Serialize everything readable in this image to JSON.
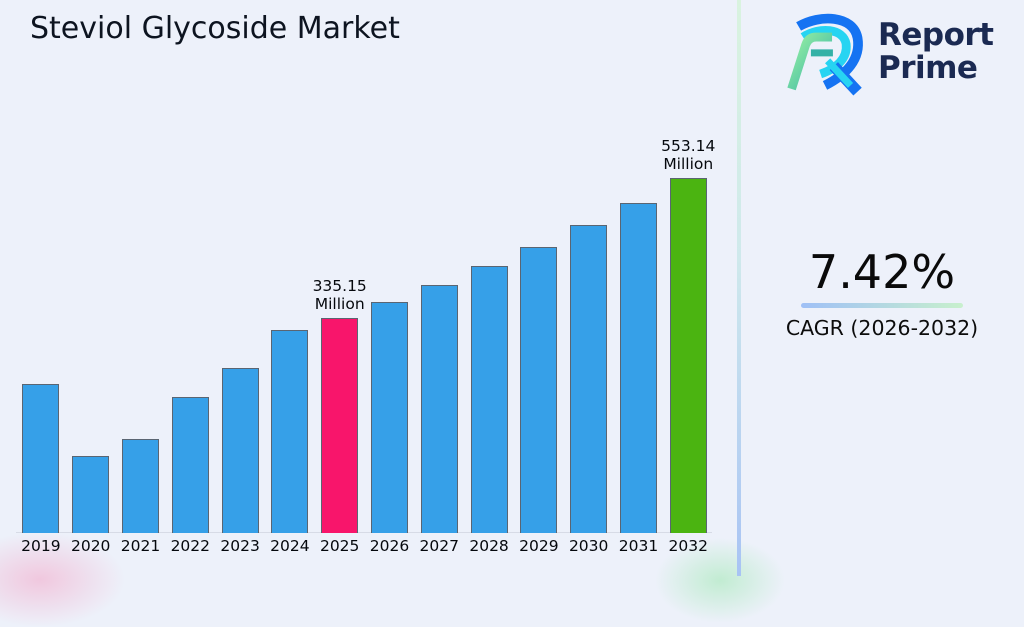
{
  "page": {
    "background": "#edf1fa"
  },
  "logo": {
    "brand_line1": "Report",
    "brand_line2": "Prime",
    "text_color": "#1b2a52",
    "icon": "report-prime-logo",
    "icon_colors": {
      "blue": "#1573f2",
      "cyan": "#27d4f2",
      "green": "#8fe89d",
      "teal": "#34b1a6"
    }
  },
  "cagr": {
    "value": "7.42%",
    "label": "CAGR (2026-2032)",
    "underline_gradient": [
      "#9fc0f6",
      "#c8f0cd"
    ]
  },
  "chart_data": {
    "type": "bar",
    "title": "Steviol Glycoside Market",
    "unit": "Million",
    "xlabel": "",
    "ylabel": "",
    "grid": false,
    "legend": false,
    "ylim": [
      0,
      580
    ],
    "categories": [
      "2019",
      "2020",
      "2021",
      "2022",
      "2023",
      "2024",
      "2025",
      "2026",
      "2027",
      "2028",
      "2029",
      "2030",
      "2031",
      "2032"
    ],
    "values": [
      232.5,
      119.5,
      146.5,
      211.5,
      256.5,
      317,
      335.15,
      360.02,
      386.73,
      415.43,
      446.25,
      479.37,
      514.94,
      553.14
    ],
    "data_labels": {
      "2025": "335.15 Million",
      "2032": "553.14 Million"
    },
    "colors": {
      "default": "#36a0e8",
      "2025": "#f8156b",
      "2032": "#4bb411"
    },
    "bar_border_color": "#5a6572",
    "axis_line_color": "#d7dbe6"
  }
}
